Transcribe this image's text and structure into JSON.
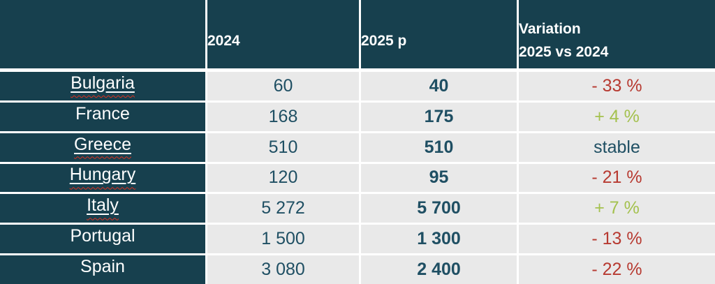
{
  "table": {
    "header": {
      "corner": "",
      "col_2024": "2024",
      "col_2025p": "2025 p",
      "variation_line1": "Variation",
      "variation_line2": "2025 vs 2024"
    },
    "rows": [
      {
        "country": "Bulgaria",
        "country_class": "spellcheck",
        "v2024": "60",
        "v2025": "40",
        "variation": "- 33 %",
        "variation_class": "neg"
      },
      {
        "country": "France",
        "country_class": "",
        "v2024": "168",
        "v2025": "175",
        "variation": "+ 4 %",
        "variation_class": "pos"
      },
      {
        "country": "Greece",
        "country_class": "spellcheck",
        "v2024": "510",
        "v2025": "510",
        "variation": "stable",
        "variation_class": "neutral"
      },
      {
        "country": "Hungary",
        "country_class": "spellcheck",
        "v2024": "120",
        "v2025": "95",
        "variation": "- 21 %",
        "variation_class": "neg"
      },
      {
        "country": "Italy",
        "country_class": "spellcheck",
        "v2024": "5 272",
        "v2025": "5 700",
        "variation": "+ 7 %",
        "variation_class": "pos"
      },
      {
        "country": "Portugal",
        "country_class": "",
        "v2024": "1 500",
        "v2025": "1 300",
        "variation": "- 13 %",
        "variation_class": "neg"
      },
      {
        "country": "Spain",
        "country_class": "",
        "v2024": "3 080",
        "v2025": "2 400",
        "variation": "- 22 %",
        "variation_class": "neg"
      }
    ],
    "colors": {
      "header_bg": "#17404e",
      "country_bg": "#17404e",
      "data_cell_bg": "#e9e9e9",
      "data_text": "#1f4f63",
      "header_text": "#ffffff",
      "negative": "#b73a31",
      "positive": "#a4c14e",
      "squiggle": "#e0301e",
      "grid_line": "#ffffff"
    }
  },
  "chart_data": {
    "type": "table",
    "title": "",
    "categories": [
      "Bulgaria",
      "France",
      "Greece",
      "Hungary",
      "Italy",
      "Portugal",
      "Spain"
    ],
    "series": [
      {
        "name": "2024",
        "values": [
          60,
          168,
          510,
          120,
          5272,
          1500,
          3080
        ]
      },
      {
        "name": "2025 p",
        "values": [
          40,
          175,
          510,
          95,
          5700,
          1300,
          2400
        ]
      },
      {
        "name": "Variation 2025 vs 2024",
        "values": [
          "- 33 %",
          "+ 4 %",
          "stable",
          "- 21 %",
          "+ 7 %",
          "- 13 %",
          "- 22 %"
        ]
      }
    ],
    "legend_position": "none",
    "grid": true
  }
}
